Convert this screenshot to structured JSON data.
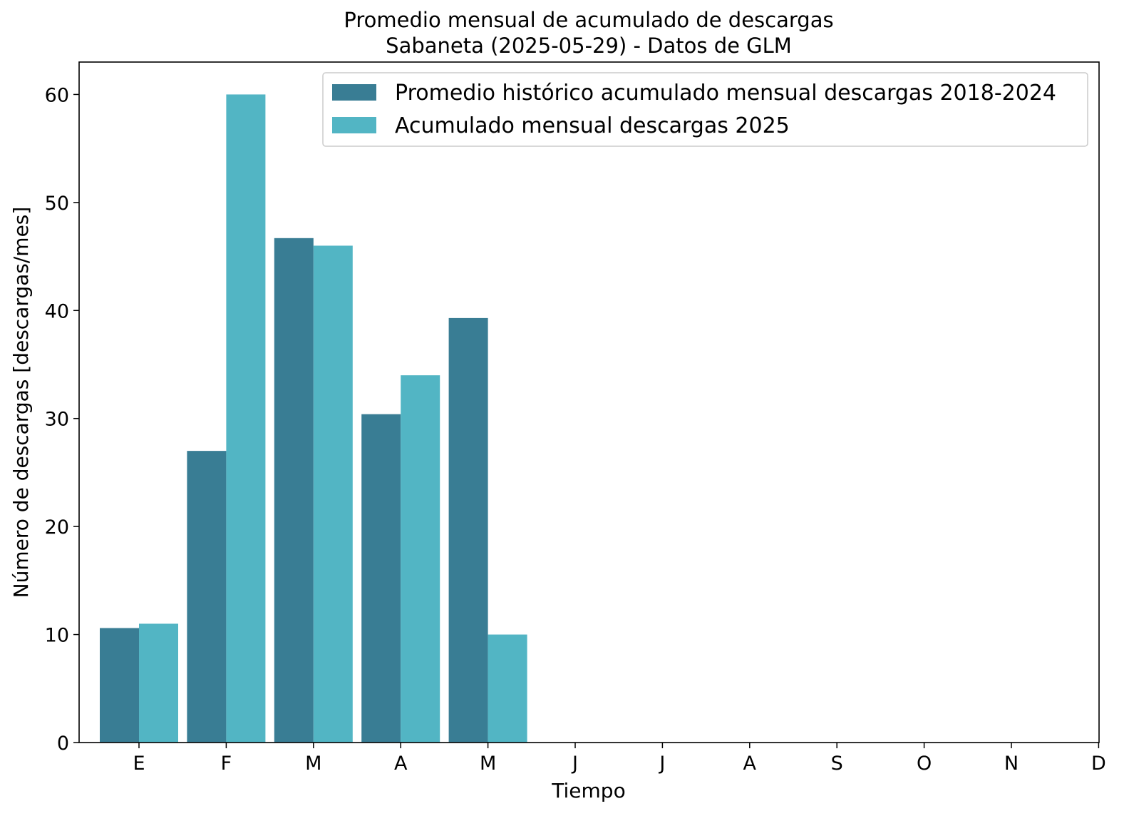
{
  "chart_data": {
    "type": "bar",
    "title": "Promedio mensual de acumulado de descargas",
    "subtitle": "Sabaneta (2025-05-29) - Datos de GLM",
    "xlabel": "Tiempo",
    "ylabel": "Número de descargas [descargas/mes]",
    "categories": [
      "E",
      "F",
      "M",
      "A",
      "M",
      "J",
      "J",
      "A",
      "S",
      "O",
      "N",
      "D"
    ],
    "yticks": [
      0,
      10,
      20,
      30,
      40,
      50,
      60
    ],
    "ylim": [
      0,
      63
    ],
    "grid": false,
    "legend_position": "top-right",
    "series": [
      {
        "name": "Promedio histórico acumulado mensual descargas 2018-2024",
        "color": "#397d94",
        "values": [
          10.6,
          27.0,
          46.7,
          30.4,
          39.3,
          null,
          null,
          null,
          null,
          null,
          null,
          null
        ]
      },
      {
        "name": "Acumulado mensual descargas 2025",
        "color": "#52b5c4",
        "values": [
          11.0,
          60.0,
          46.0,
          34.0,
          10.0,
          null,
          null,
          null,
          null,
          null,
          null,
          null
        ]
      }
    ]
  }
}
